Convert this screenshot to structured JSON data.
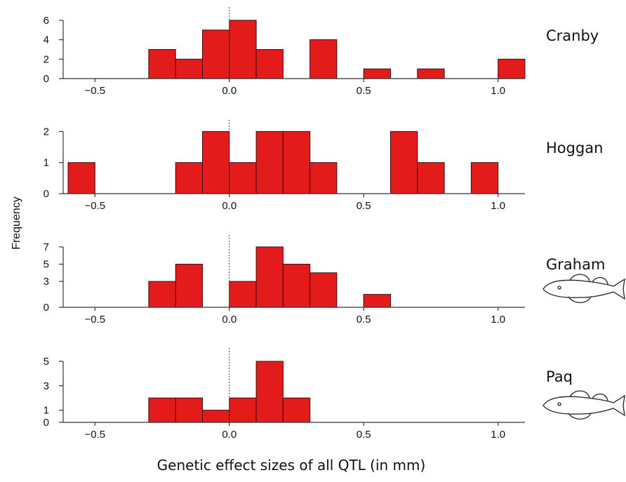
{
  "figure": {
    "xlabel": "Genetic effect sizes of all QTL (in mm)",
    "ylabel": "Frequency"
  },
  "chart_data": [
    {
      "type": "bar",
      "population": "Cranby",
      "bin_width": 0.1,
      "bins": [
        {
          "x0": -0.3,
          "count": 3
        },
        {
          "x0": -0.2,
          "count": 2
        },
        {
          "x0": -0.1,
          "count": 5
        },
        {
          "x0": 0.0,
          "count": 6
        },
        {
          "x0": 0.1,
          "count": 3
        },
        {
          "x0": 0.3,
          "count": 4
        },
        {
          "x0": 0.5,
          "count": 1
        },
        {
          "x0": 0.7,
          "count": 1
        },
        {
          "x0": 1.0,
          "count": 2
        }
      ],
      "xlim": [
        -0.6,
        1.1
      ],
      "ylim": [
        0,
        6.5
      ],
      "yticks": [
        0,
        2,
        4,
        6
      ],
      "xticks": [
        -0.5,
        0.0,
        0.5,
        1.0
      ],
      "xtick_labels": [
        "−0.5",
        "0.0",
        "0.5",
        "1.0"
      ],
      "zero_line": true,
      "fish_icon": false
    },
    {
      "type": "bar",
      "population": "Hoggan",
      "bin_width": 0.1,
      "bins": [
        {
          "x0": -0.6,
          "count": 1
        },
        {
          "x0": -0.2,
          "count": 1
        },
        {
          "x0": -0.1,
          "count": 2
        },
        {
          "x0": 0.0,
          "count": 1
        },
        {
          "x0": 0.1,
          "count": 2
        },
        {
          "x0": 0.2,
          "count": 2
        },
        {
          "x0": 0.3,
          "count": 1
        },
        {
          "x0": 0.6,
          "count": 2
        },
        {
          "x0": 0.7,
          "count": 1
        },
        {
          "x0": 0.9,
          "count": 1
        }
      ],
      "xlim": [
        -0.6,
        1.1
      ],
      "ylim": [
        0,
        2.1
      ],
      "yticks": [
        0,
        1,
        2
      ],
      "xticks": [
        -0.5,
        0.0,
        0.5,
        1.0
      ],
      "xtick_labels": [
        "−0.5",
        "0.0",
        "0.5",
        "1.0"
      ],
      "zero_line": true,
      "fish_icon": false
    },
    {
      "type": "bar",
      "population": "Graham",
      "bin_width": 0.1,
      "bins": [
        {
          "x0": -0.3,
          "count": 3
        },
        {
          "x0": -0.2,
          "count": 5
        },
        {
          "x0": 0.0,
          "count": 3
        },
        {
          "x0": 0.1,
          "count": 7
        },
        {
          "x0": 0.2,
          "count": 5
        },
        {
          "x0": 0.3,
          "count": 4
        },
        {
          "x0": 0.5,
          "count": 1.5
        }
      ],
      "xlim": [
        -0.6,
        1.1
      ],
      "ylim": [
        0,
        7.4
      ],
      "yticks": [
        0,
        3,
        5,
        7
      ],
      "xticks": [
        -0.5,
        0.0,
        0.5,
        1.0
      ],
      "xtick_labels": [
        "−0.5",
        "0.0",
        "0.5",
        "1.0"
      ],
      "zero_line": true,
      "fish_icon": true
    },
    {
      "type": "bar",
      "population": "Paq",
      "bin_width": 0.1,
      "bins": [
        {
          "x0": -0.3,
          "count": 2
        },
        {
          "x0": -0.2,
          "count": 2
        },
        {
          "x0": -0.1,
          "count": 1
        },
        {
          "x0": 0.0,
          "count": 2
        },
        {
          "x0": 0.1,
          "count": 5
        },
        {
          "x0": 0.2,
          "count": 2
        }
      ],
      "xlim": [
        -0.6,
        1.1
      ],
      "ylim": [
        0,
        5.4
      ],
      "yticks": [
        0,
        1,
        3,
        5
      ],
      "xticks": [
        -0.5,
        0.0,
        0.5,
        1.0
      ],
      "xtick_labels": [
        "−0.5",
        "0.0",
        "0.5",
        "1.0"
      ],
      "zero_line": true,
      "fish_icon": true
    }
  ],
  "colors": {
    "bar_fill": "#e41b1b",
    "bar_edge": "#3a1010",
    "axis": "#333333"
  }
}
